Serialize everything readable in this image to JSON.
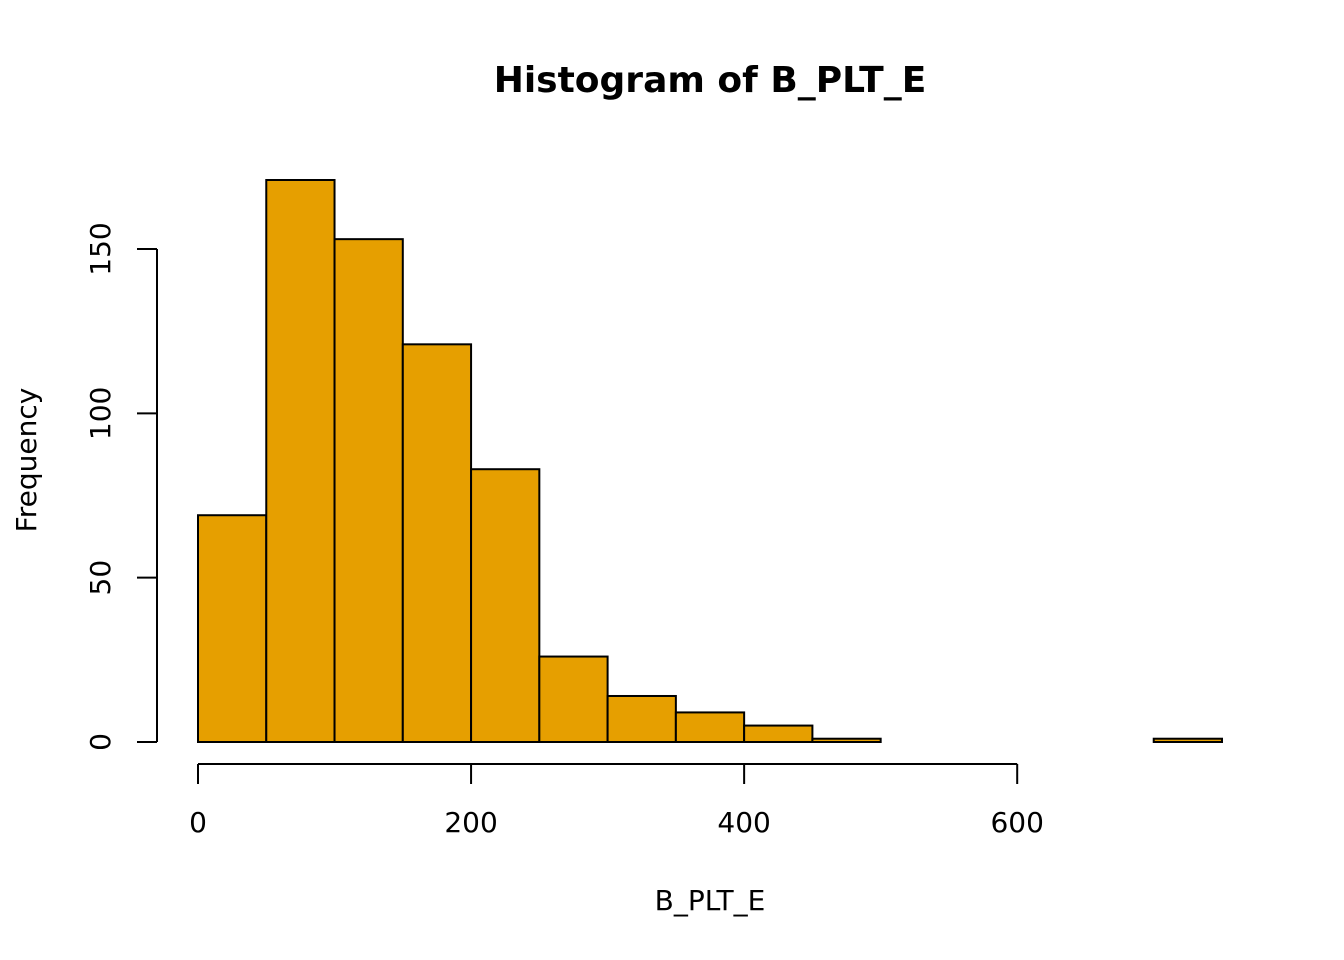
{
  "chart_data": {
    "type": "bar",
    "title": "Histogram of B_PLT_E",
    "xlabel": "B_PLT_E",
    "ylabel": "Frequency",
    "bar_color": "#E69F00",
    "bin_edges": [
      0,
      50,
      100,
      150,
      200,
      250,
      300,
      350,
      400,
      450,
      500,
      550,
      600,
      650,
      700,
      750
    ],
    "values": [
      69,
      171,
      153,
      121,
      83,
      26,
      14,
      9,
      5,
      1,
      0,
      0,
      0,
      0,
      1
    ],
    "xlim": [
      0,
      750
    ],
    "ylim": [
      0,
      171
    ],
    "x_ticks": [
      0,
      200,
      400,
      600
    ],
    "x_tick_labels": [
      "0",
      "200",
      "400",
      "600"
    ],
    "y_ticks": [
      0,
      50,
      100,
      150
    ],
    "y_tick_labels": [
      "0",
      "50",
      "100",
      "150"
    ],
    "grid": false,
    "legend": "none"
  }
}
